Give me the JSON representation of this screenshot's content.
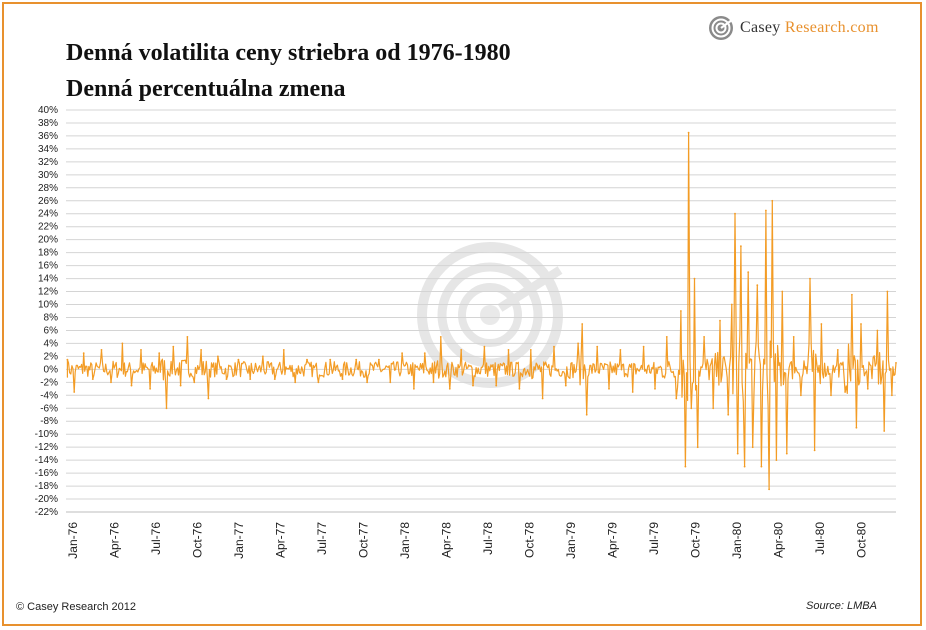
{
  "header": {
    "title_line1": "Denná volatilita ceny striebra od 1976-1980",
    "title_line2": "Denná percentuálna zmena"
  },
  "logo": {
    "word_casey": "Casey",
    "word_research": " Research.com",
    "icon": "casey-research-swirl-icon"
  },
  "footer": {
    "copyright": "© Casey Research 2012",
    "source": "Source: LMBA"
  },
  "colors": {
    "series": "#f39c25",
    "frame": "#e8912e",
    "grid": "#d4d4d4",
    "watermark": "#e3e3e3"
  },
  "chart_data": {
    "type": "line",
    "title": "Denná volatilita ceny striebra od 1976-1980",
    "subtitle": "Denná percentuálna zmena",
    "xlabel": "",
    "ylabel": "",
    "ylim": [
      -22,
      40
    ],
    "y_tick_step": 2,
    "y_tick_format": "percent",
    "grid": true,
    "legend": "none",
    "x_range": [
      "1976-01-02",
      "1980-12-31"
    ],
    "x_ticks": [
      "Jan-76",
      "Apr-76",
      "Jul-76",
      "Oct-76",
      "Jan-77",
      "Apr-77",
      "Jul-77",
      "Oct-77",
      "Jan-78",
      "Apr-78",
      "Jul-78",
      "Oct-78",
      "Jan-79",
      "Apr-79",
      "Jul-79",
      "Oct-79",
      "Jan-80",
      "Apr-80",
      "Jul-80",
      "Oct-80"
    ],
    "series": [
      {
        "values_unit": "percent",
        "points": [
          [
            "1976-01-05",
            1.5
          ],
          [
            "1976-01-20",
            -3.5
          ],
          [
            "1976-02-10",
            2.5
          ],
          [
            "1976-03-01",
            -1.5
          ],
          [
            "1976-03-20",
            3.0
          ],
          [
            "1976-04-10",
            -2.0
          ],
          [
            "1976-05-05",
            4.0
          ],
          [
            "1976-05-25",
            -2.5
          ],
          [
            "1976-06-15",
            3.0
          ],
          [
            "1976-07-05",
            -3.0
          ],
          [
            "1976-07-25",
            2.5
          ],
          [
            "1976-08-10",
            -6.0
          ],
          [
            "1976-08-25",
            3.5
          ],
          [
            "1976-09-10",
            -2.5
          ],
          [
            "1976-09-25",
            5.0
          ],
          [
            "1976-10-10",
            -2.0
          ],
          [
            "1976-10-25",
            3.0
          ],
          [
            "1976-11-10",
            -4.5
          ],
          [
            "1976-12-01",
            2.0
          ],
          [
            "1976-12-20",
            -1.5
          ],
          [
            "1977-01-15",
            1.5
          ],
          [
            "1977-02-10",
            -1.5
          ],
          [
            "1977-03-10",
            2.0
          ],
          [
            "1977-04-05",
            -1.5
          ],
          [
            "1977-04-25",
            3.0
          ],
          [
            "1977-05-20",
            -2.0
          ],
          [
            "1977-06-15",
            1.5
          ],
          [
            "1977-07-10",
            -2.0
          ],
          [
            "1977-08-05",
            1.5
          ],
          [
            "1977-09-01",
            -1.5
          ],
          [
            "1977-10-01",
            1.5
          ],
          [
            "1977-10-25",
            -2.0
          ],
          [
            "1977-11-20",
            1.5
          ],
          [
            "1977-12-15",
            -2.0
          ],
          [
            "1978-01-10",
            2.5
          ],
          [
            "1978-02-05",
            -3.0
          ],
          [
            "1978-03-01",
            2.5
          ],
          [
            "1978-03-20",
            -2.0
          ],
          [
            "1978-04-05",
            5.0
          ],
          [
            "1978-04-25",
            -3.0
          ],
          [
            "1978-05-20",
            3.0
          ],
          [
            "1978-06-15",
            -2.5
          ],
          [
            "1978-07-10",
            3.5
          ],
          [
            "1978-08-05",
            -2.5
          ],
          [
            "1978-09-01",
            3.0
          ],
          [
            "1978-09-25",
            -3.0
          ],
          [
            "1978-10-20",
            3.0
          ],
          [
            "1978-11-15",
            -4.5
          ],
          [
            "1978-12-10",
            3.5
          ],
          [
            "1979-01-05",
            -2.5
          ],
          [
            "1979-02-01",
            4.0
          ],
          [
            "1979-02-10",
            7.0
          ],
          [
            "1979-02-20",
            -7.0
          ],
          [
            "1979-03-15",
            3.5
          ],
          [
            "1979-04-10",
            -3.0
          ],
          [
            "1979-05-05",
            3.0
          ],
          [
            "1979-06-01",
            -3.5
          ],
          [
            "1979-06-25",
            3.5
          ],
          [
            "1979-07-20",
            -3.0
          ],
          [
            "1979-08-15",
            5.0
          ],
          [
            "1979-09-05",
            -4.5
          ],
          [
            "1979-09-15",
            9.0
          ],
          [
            "1979-09-25",
            -15.0
          ],
          [
            "1979-10-02",
            36.5
          ],
          [
            "1979-10-08",
            -6.0
          ],
          [
            "1979-10-15",
            14.0
          ],
          [
            "1979-10-22",
            -12.0
          ],
          [
            "1979-11-05",
            5.0
          ],
          [
            "1979-11-25",
            -6.0
          ],
          [
            "1979-12-10",
            7.5
          ],
          [
            "1979-12-28",
            -7.0
          ],
          [
            "1980-01-05",
            10.0
          ],
          [
            "1980-01-12",
            24.0
          ],
          [
            "1980-01-18",
            -13.0
          ],
          [
            "1980-01-25",
            19.0
          ],
          [
            "1980-02-02",
            -15.0
          ],
          [
            "1980-02-10",
            15.0
          ],
          [
            "1980-02-20",
            -12.0
          ],
          [
            "1980-03-01",
            13.0
          ],
          [
            "1980-03-10",
            -15.0
          ],
          [
            "1980-03-20",
            24.5
          ],
          [
            "1980-03-27",
            -18.5
          ],
          [
            "1980-04-03",
            26.0
          ],
          [
            "1980-04-12",
            -14.0
          ],
          [
            "1980-04-25",
            12.0
          ],
          [
            "1980-05-05",
            -13.0
          ],
          [
            "1980-05-20",
            5.0
          ],
          [
            "1980-06-05",
            -4.0
          ],
          [
            "1980-06-25",
            14.0
          ],
          [
            "1980-07-05",
            -12.5
          ],
          [
            "1980-07-20",
            7.0
          ],
          [
            "1980-08-10",
            -4.0
          ],
          [
            "1980-08-25",
            3.0
          ],
          [
            "1980-09-10",
            -3.5
          ],
          [
            "1980-09-25",
            11.5
          ],
          [
            "1980-10-05",
            -9.0
          ],
          [
            "1980-10-15",
            7.0
          ],
          [
            "1980-10-30",
            -3.0
          ],
          [
            "1980-11-20",
            6.0
          ],
          [
            "1980-12-05",
            -9.5
          ],
          [
            "1980-12-12",
            12.0
          ],
          [
            "1980-12-22",
            -4.0
          ],
          [
            "1980-12-31",
            1.0
          ]
        ]
      }
    ]
  }
}
